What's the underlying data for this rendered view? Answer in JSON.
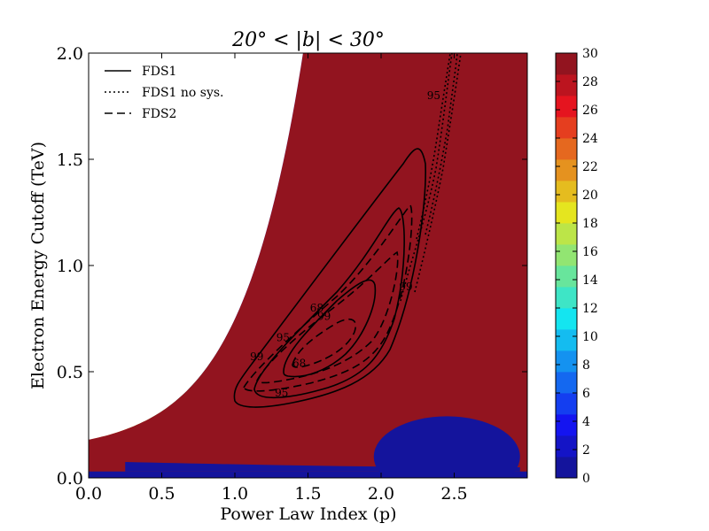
{
  "chart_data": {
    "type": "heatmap",
    "title": "20° < |b| < 30°",
    "xlabel": "Power Law Index (p)",
    "ylabel": "Electron Energy Cutoff (TeV)",
    "xlim": [
      0.0,
      3.0
    ],
    "ylim": [
      0.0,
      2.0
    ],
    "xticks": [
      "0.0",
      "0.5",
      "1.0",
      "1.5",
      "2.0",
      "2.5"
    ],
    "yticks": [
      "0.0",
      "0.5",
      "1.0",
      "1.5",
      "2.0"
    ],
    "colorbar": {
      "min": 0,
      "max": 30,
      "step": 1.5,
      "ticks": [
        "0",
        "2",
        "4",
        "6",
        "8",
        "10",
        "12",
        "14",
        "16",
        "18",
        "20",
        "22",
        "24",
        "26",
        "28",
        "30"
      ]
    },
    "legend": [
      {
        "label": "FDS1",
        "style": "solid"
      },
      {
        "label": "FDS1 no sys.",
        "style": "dotted"
      },
      {
        "label": "FDS2",
        "style": "dashed"
      }
    ],
    "contour_labels": [
      {
        "text": "99",
        "x": 1.15,
        "y": 0.57
      },
      {
        "text": "95",
        "x": 1.33,
        "y": 0.66
      },
      {
        "text": "68",
        "x": 1.56,
        "y": 0.8
      },
      {
        "text": "99",
        "x": 1.61,
        "y": 0.76
      },
      {
        "text": "68",
        "x": 1.44,
        "y": 0.54
      },
      {
        "text": "95",
        "x": 1.32,
        "y": 0.4
      },
      {
        "text": "99",
        "x": 2.17,
        "y": 0.9
      },
      {
        "text": "95",
        "x": 2.36,
        "y": 1.8
      }
    ]
  }
}
